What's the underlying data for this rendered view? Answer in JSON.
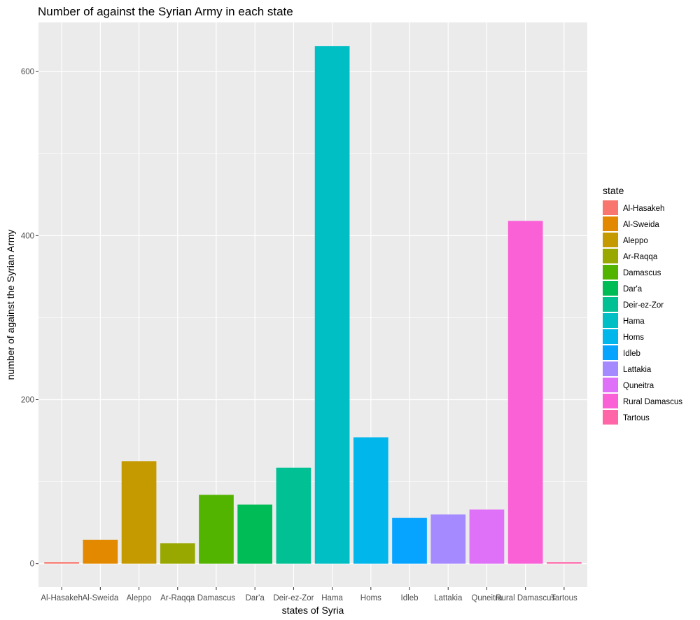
{
  "chart_data": {
    "type": "bar",
    "title": "Number of against the Syrian Army in each state",
    "xlabel": "states of Syria",
    "ylabel": "number of against the Syrian Army",
    "categories": [
      "Al-Hasakeh",
      "Al-Sweida",
      "Aleppo",
      "Ar-Raqqa",
      "Damascus",
      "Dar'a",
      "Deir-ez-Zor",
      "Hama",
      "Homs",
      "Idleb",
      "Lattakia",
      "Quneitra",
      "Rural Damascus",
      "Tartous"
    ],
    "values": [
      2,
      29,
      125,
      25,
      84,
      72,
      117,
      631,
      154,
      56,
      60,
      66,
      418,
      2
    ],
    "colors": [
      "#F8766D",
      "#E38900",
      "#C49A00",
      "#99A800",
      "#53B400",
      "#00BC56",
      "#00C094",
      "#00BFC4",
      "#00B6EB",
      "#06A4FF",
      "#A58AFF",
      "#DF70F8",
      "#FB61D7",
      "#FF66A8"
    ],
    "ylim": [
      -28.5,
      660
    ],
    "yticks": [
      0,
      200,
      400,
      600
    ],
    "grid": true,
    "legend": {
      "title": "state",
      "position": "right"
    }
  }
}
